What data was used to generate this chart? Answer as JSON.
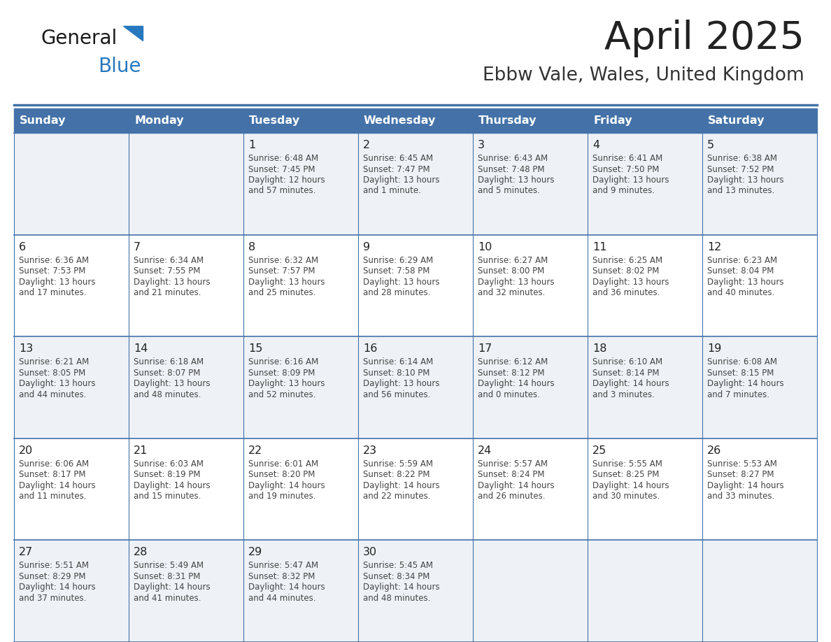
{
  "title": "April 2025",
  "subtitle": "Ebbw Vale, Wales, United Kingdom",
  "days_of_week": [
    "Sunday",
    "Monday",
    "Tuesday",
    "Wednesday",
    "Thursday",
    "Friday",
    "Saturday"
  ],
  "header_bg": "#4472a8",
  "header_text": "#ffffff",
  "cell_bg_even": "#eef2f7",
  "cell_bg_odd": "#ffffff",
  "border_color": "#4472a8",
  "day_number_color": "#222222",
  "text_color": "#444444",
  "title_color": "#222222",
  "subtitle_color": "#333333",
  "logo_general_color": "#1a1a1a",
  "logo_blue_color": "#2878c0",
  "weeks": [
    [
      {
        "date": "",
        "sunrise": "",
        "sunset": "",
        "daylight": ""
      },
      {
        "date": "",
        "sunrise": "",
        "sunset": "",
        "daylight": ""
      },
      {
        "date": "1",
        "sunrise": "Sunrise: 6:48 AM",
        "sunset": "Sunset: 7:45 PM",
        "daylight": "Daylight: 12 hours\nand 57 minutes."
      },
      {
        "date": "2",
        "sunrise": "Sunrise: 6:45 AM",
        "sunset": "Sunset: 7:47 PM",
        "daylight": "Daylight: 13 hours\nand 1 minute."
      },
      {
        "date": "3",
        "sunrise": "Sunrise: 6:43 AM",
        "sunset": "Sunset: 7:48 PM",
        "daylight": "Daylight: 13 hours\nand 5 minutes."
      },
      {
        "date": "4",
        "sunrise": "Sunrise: 6:41 AM",
        "sunset": "Sunset: 7:50 PM",
        "daylight": "Daylight: 13 hours\nand 9 minutes."
      },
      {
        "date": "5",
        "sunrise": "Sunrise: 6:38 AM",
        "sunset": "Sunset: 7:52 PM",
        "daylight": "Daylight: 13 hours\nand 13 minutes."
      }
    ],
    [
      {
        "date": "6",
        "sunrise": "Sunrise: 6:36 AM",
        "sunset": "Sunset: 7:53 PM",
        "daylight": "Daylight: 13 hours\nand 17 minutes."
      },
      {
        "date": "7",
        "sunrise": "Sunrise: 6:34 AM",
        "sunset": "Sunset: 7:55 PM",
        "daylight": "Daylight: 13 hours\nand 21 minutes."
      },
      {
        "date": "8",
        "sunrise": "Sunrise: 6:32 AM",
        "sunset": "Sunset: 7:57 PM",
        "daylight": "Daylight: 13 hours\nand 25 minutes."
      },
      {
        "date": "9",
        "sunrise": "Sunrise: 6:29 AM",
        "sunset": "Sunset: 7:58 PM",
        "daylight": "Daylight: 13 hours\nand 28 minutes."
      },
      {
        "date": "10",
        "sunrise": "Sunrise: 6:27 AM",
        "sunset": "Sunset: 8:00 PM",
        "daylight": "Daylight: 13 hours\nand 32 minutes."
      },
      {
        "date": "11",
        "sunrise": "Sunrise: 6:25 AM",
        "sunset": "Sunset: 8:02 PM",
        "daylight": "Daylight: 13 hours\nand 36 minutes."
      },
      {
        "date": "12",
        "sunrise": "Sunrise: 6:23 AM",
        "sunset": "Sunset: 8:04 PM",
        "daylight": "Daylight: 13 hours\nand 40 minutes."
      }
    ],
    [
      {
        "date": "13",
        "sunrise": "Sunrise: 6:21 AM",
        "sunset": "Sunset: 8:05 PM",
        "daylight": "Daylight: 13 hours\nand 44 minutes."
      },
      {
        "date": "14",
        "sunrise": "Sunrise: 6:18 AM",
        "sunset": "Sunset: 8:07 PM",
        "daylight": "Daylight: 13 hours\nand 48 minutes."
      },
      {
        "date": "15",
        "sunrise": "Sunrise: 6:16 AM",
        "sunset": "Sunset: 8:09 PM",
        "daylight": "Daylight: 13 hours\nand 52 minutes."
      },
      {
        "date": "16",
        "sunrise": "Sunrise: 6:14 AM",
        "sunset": "Sunset: 8:10 PM",
        "daylight": "Daylight: 13 hours\nand 56 minutes."
      },
      {
        "date": "17",
        "sunrise": "Sunrise: 6:12 AM",
        "sunset": "Sunset: 8:12 PM",
        "daylight": "Daylight: 14 hours\nand 0 minutes."
      },
      {
        "date": "18",
        "sunrise": "Sunrise: 6:10 AM",
        "sunset": "Sunset: 8:14 PM",
        "daylight": "Daylight: 14 hours\nand 3 minutes."
      },
      {
        "date": "19",
        "sunrise": "Sunrise: 6:08 AM",
        "sunset": "Sunset: 8:15 PM",
        "daylight": "Daylight: 14 hours\nand 7 minutes."
      }
    ],
    [
      {
        "date": "20",
        "sunrise": "Sunrise: 6:06 AM",
        "sunset": "Sunset: 8:17 PM",
        "daylight": "Daylight: 14 hours\nand 11 minutes."
      },
      {
        "date": "21",
        "sunrise": "Sunrise: 6:03 AM",
        "sunset": "Sunset: 8:19 PM",
        "daylight": "Daylight: 14 hours\nand 15 minutes."
      },
      {
        "date": "22",
        "sunrise": "Sunrise: 6:01 AM",
        "sunset": "Sunset: 8:20 PM",
        "daylight": "Daylight: 14 hours\nand 19 minutes."
      },
      {
        "date": "23",
        "sunrise": "Sunrise: 5:59 AM",
        "sunset": "Sunset: 8:22 PM",
        "daylight": "Daylight: 14 hours\nand 22 minutes."
      },
      {
        "date": "24",
        "sunrise": "Sunrise: 5:57 AM",
        "sunset": "Sunset: 8:24 PM",
        "daylight": "Daylight: 14 hours\nand 26 minutes."
      },
      {
        "date": "25",
        "sunrise": "Sunrise: 5:55 AM",
        "sunset": "Sunset: 8:25 PM",
        "daylight": "Daylight: 14 hours\nand 30 minutes."
      },
      {
        "date": "26",
        "sunrise": "Sunrise: 5:53 AM",
        "sunset": "Sunset: 8:27 PM",
        "daylight": "Daylight: 14 hours\nand 33 minutes."
      }
    ],
    [
      {
        "date": "27",
        "sunrise": "Sunrise: 5:51 AM",
        "sunset": "Sunset: 8:29 PM",
        "daylight": "Daylight: 14 hours\nand 37 minutes."
      },
      {
        "date": "28",
        "sunrise": "Sunrise: 5:49 AM",
        "sunset": "Sunset: 8:31 PM",
        "daylight": "Daylight: 14 hours\nand 41 minutes."
      },
      {
        "date": "29",
        "sunrise": "Sunrise: 5:47 AM",
        "sunset": "Sunset: 8:32 PM",
        "daylight": "Daylight: 14 hours\nand 44 minutes."
      },
      {
        "date": "30",
        "sunrise": "Sunrise: 5:45 AM",
        "sunset": "Sunset: 8:34 PM",
        "daylight": "Daylight: 14 hours\nand 48 minutes."
      },
      {
        "date": "",
        "sunrise": "",
        "sunset": "",
        "daylight": ""
      },
      {
        "date": "",
        "sunrise": "",
        "sunset": "",
        "daylight": ""
      },
      {
        "date": "",
        "sunrise": "",
        "sunset": "",
        "daylight": ""
      }
    ]
  ]
}
